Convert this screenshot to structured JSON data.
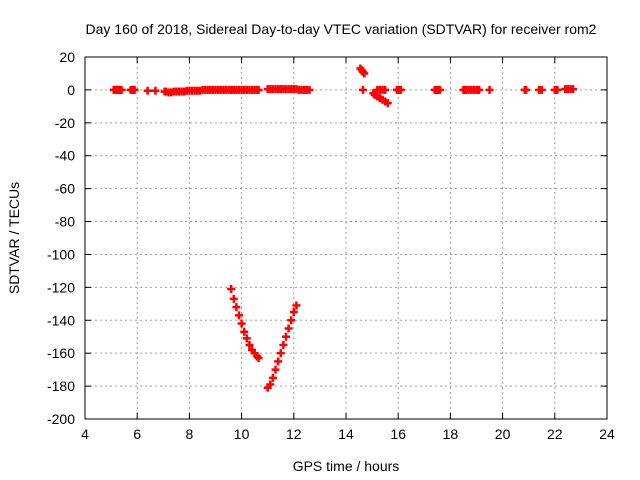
{
  "chart_data": {
    "type": "scatter",
    "title": "Day 160 of 2018, Sidereal Day-to-day VTEC variation (SDTVAR) for receiver rom2",
    "xlabel": "GPS time / hours",
    "ylabel": "SDTVAR / TECUs",
    "xlim": [
      4,
      24
    ],
    "ylim": [
      -200,
      20
    ],
    "xticks": [
      4,
      6,
      8,
      10,
      12,
      14,
      16,
      18,
      20,
      22,
      24
    ],
    "yticks": [
      -200,
      -180,
      -160,
      -140,
      -120,
      -100,
      -80,
      -60,
      -40,
      -20,
      0,
      20
    ],
    "grid": true,
    "marker": "plus",
    "color": "#ff0000",
    "series": [
      {
        "points": [
          [
            5.1,
            0
          ],
          [
            5.15,
            0
          ],
          [
            5.2,
            0
          ],
          [
            5.25,
            0
          ],
          [
            5.3,
            0
          ],
          [
            5.35,
            0
          ],
          [
            5.4,
            0
          ],
          [
            5.75,
            0
          ],
          [
            5.8,
            0
          ],
          [
            5.85,
            0
          ],
          [
            5.9,
            0
          ],
          [
            6.4,
            -0.5
          ],
          [
            6.7,
            -0.5
          ],
          [
            7.05,
            -1
          ],
          [
            7.1,
            -1
          ],
          [
            7.2,
            -1.5
          ],
          [
            7.3,
            -1.5
          ],
          [
            7.4,
            -1
          ],
          [
            7.5,
            -1
          ],
          [
            7.6,
            -1
          ],
          [
            7.7,
            -1
          ],
          [
            7.8,
            -1
          ],
          [
            7.9,
            -0.5
          ],
          [
            8.0,
            -0.5
          ],
          [
            8.1,
            -0.5
          ],
          [
            8.2,
            -0.5
          ],
          [
            8.3,
            -0.5
          ],
          [
            8.4,
            -0.5
          ],
          [
            8.5,
            0
          ],
          [
            8.6,
            0
          ],
          [
            8.7,
            0
          ],
          [
            8.8,
            0
          ],
          [
            8.9,
            0
          ],
          [
            9.0,
            0
          ],
          [
            9.1,
            0
          ],
          [
            9.2,
            0
          ],
          [
            9.3,
            0
          ],
          [
            9.4,
            0
          ],
          [
            9.5,
            0
          ],
          [
            9.6,
            0
          ],
          [
            9.7,
            0
          ],
          [
            9.8,
            0
          ],
          [
            9.9,
            0
          ],
          [
            10.0,
            0
          ],
          [
            10.1,
            0
          ],
          [
            10.2,
            0
          ],
          [
            10.3,
            0
          ],
          [
            10.4,
            0
          ],
          [
            10.5,
            0
          ],
          [
            10.6,
            0
          ],
          [
            10.65,
            0
          ],
          [
            11.0,
            0.5
          ],
          [
            11.1,
            0.5
          ],
          [
            11.2,
            0.5
          ],
          [
            11.3,
            0.5
          ],
          [
            11.4,
            0.5
          ],
          [
            11.5,
            0.5
          ],
          [
            11.6,
            0.5
          ],
          [
            11.7,
            0.5
          ],
          [
            11.8,
            0.5
          ],
          [
            11.9,
            0.5
          ],
          [
            12.0,
            0.5
          ],
          [
            12.1,
            0.5
          ],
          [
            12.2,
            0
          ],
          [
            12.3,
            0
          ],
          [
            12.4,
            0
          ],
          [
            12.5,
            0
          ],
          [
            12.6,
            0
          ],
          [
            14.55,
            13
          ],
          [
            14.6,
            12
          ],
          [
            14.65,
            11
          ],
          [
            14.7,
            10
          ],
          [
            14.65,
            0
          ],
          [
            15.05,
            -2
          ],
          [
            15.1,
            -3
          ],
          [
            15.2,
            -4
          ],
          [
            15.3,
            -5
          ],
          [
            15.4,
            -6
          ],
          [
            15.5,
            -7
          ],
          [
            15.6,
            -8
          ],
          [
            15.2,
            0
          ],
          [
            15.3,
            0
          ],
          [
            15.4,
            0
          ],
          [
            15.5,
            0
          ],
          [
            15.95,
            0
          ],
          [
            16.0,
            0
          ],
          [
            16.05,
            0
          ],
          [
            16.1,
            0
          ],
          [
            17.4,
            0
          ],
          [
            17.45,
            0
          ],
          [
            17.5,
            0
          ],
          [
            17.55,
            0
          ],
          [
            17.6,
            0
          ],
          [
            18.5,
            0
          ],
          [
            18.55,
            0
          ],
          [
            18.6,
            0
          ],
          [
            18.7,
            0
          ],
          [
            18.8,
            0
          ],
          [
            18.9,
            0
          ],
          [
            19.0,
            0
          ],
          [
            19.05,
            0
          ],
          [
            19.1,
            0
          ],
          [
            19.5,
            0
          ],
          [
            20.85,
            0
          ],
          [
            20.9,
            0
          ],
          [
            21.4,
            0
          ],
          [
            21.5,
            0
          ],
          [
            22.0,
            0
          ],
          [
            22.05,
            0
          ],
          [
            22.1,
            0
          ],
          [
            22.4,
            0.5
          ],
          [
            22.5,
            0.5
          ],
          [
            22.6,
            0.5
          ],
          [
            22.7,
            0.5
          ],
          [
            9.6,
            -121
          ],
          [
            9.7,
            -127
          ],
          [
            9.8,
            -132
          ],
          [
            9.9,
            -137
          ],
          [
            10.0,
            -142
          ],
          [
            10.1,
            -147
          ],
          [
            10.2,
            -151
          ],
          [
            10.3,
            -155
          ],
          [
            10.4,
            -158
          ],
          [
            10.5,
            -160
          ],
          [
            10.6,
            -162
          ],
          [
            10.65,
            -163
          ],
          [
            11.0,
            -181
          ],
          [
            11.1,
            -179
          ],
          [
            11.2,
            -175
          ],
          [
            11.3,
            -170
          ],
          [
            11.4,
            -165
          ],
          [
            11.5,
            -160
          ],
          [
            11.6,
            -155
          ],
          [
            11.7,
            -150
          ],
          [
            11.8,
            -145
          ],
          [
            11.9,
            -140
          ],
          [
            12.0,
            -135
          ],
          [
            12.1,
            -131
          ]
        ]
      }
    ]
  }
}
